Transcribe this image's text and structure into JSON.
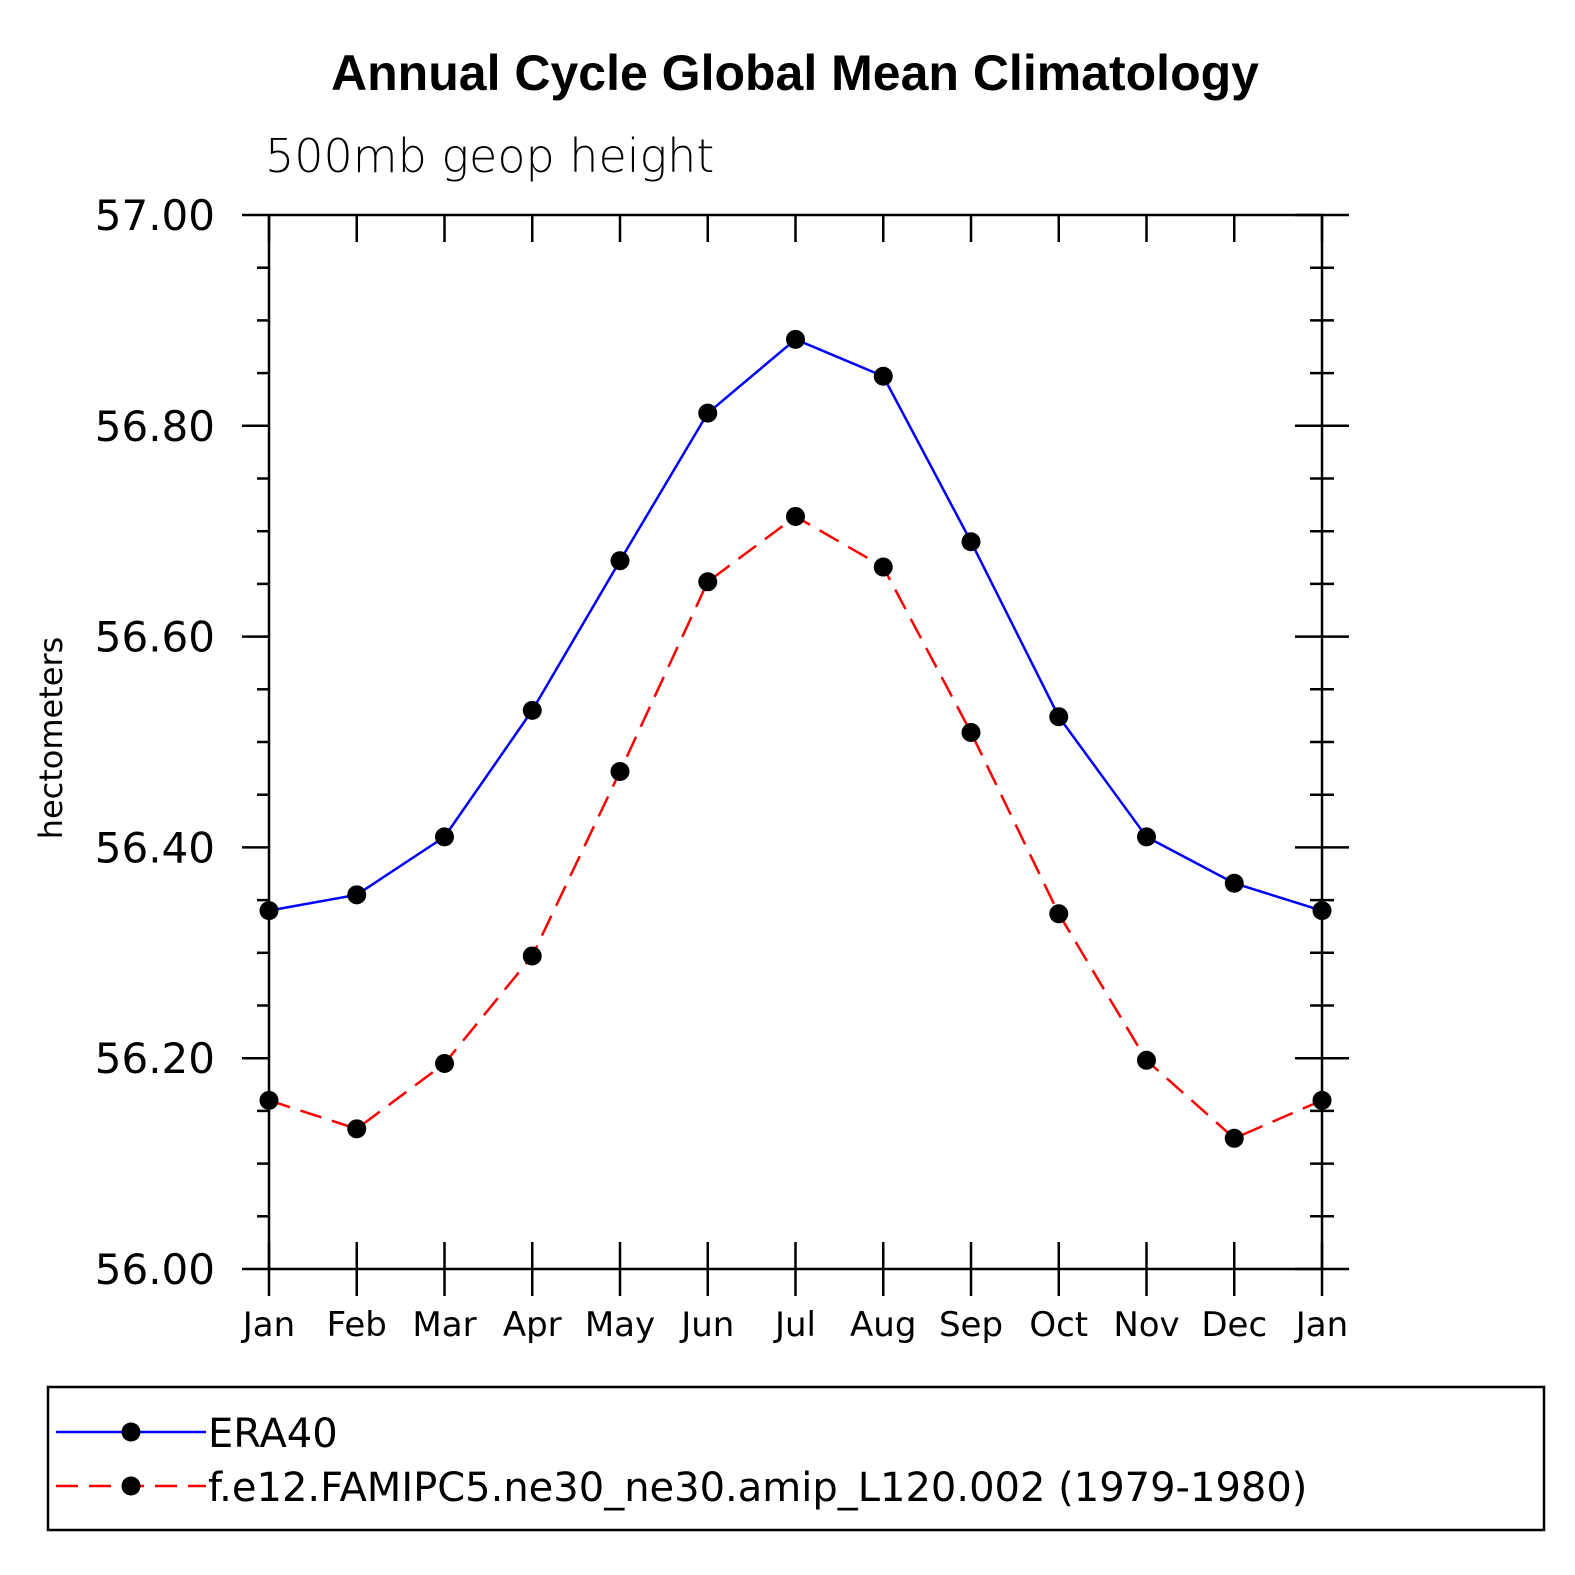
{
  "chart_data": {
    "type": "line",
    "title": "Annual Cycle Global Mean Climatology",
    "subtitle": "500mb geop height",
    "xlabel": "",
    "ylabel": "hectometers",
    "categories": [
      "Jan",
      "Feb",
      "Mar",
      "Apr",
      "May",
      "Jun",
      "Jul",
      "Aug",
      "Sep",
      "Oct",
      "Nov",
      "Dec",
      "Jan"
    ],
    "ylim": [
      56.0,
      57.0
    ],
    "yticks": [
      56.0,
      56.2,
      56.4,
      56.6,
      56.8,
      57.0
    ],
    "ytick_labels": [
      "56.00",
      "56.20",
      "56.40",
      "56.60",
      "56.80",
      "57.00"
    ],
    "y_minor_step": 0.05,
    "grid": false,
    "legend_position": "bottom",
    "series": [
      {
        "name": "ERA40",
        "color": "#0000ff",
        "style": "solid",
        "marker": "filled-circle",
        "values": [
          56.34,
          56.355,
          56.41,
          56.53,
          56.672,
          56.812,
          56.882,
          56.847,
          56.69,
          56.524,
          56.41,
          56.366,
          56.34
        ]
      },
      {
        "name": "f.e12.FAMIPC5.ne30_ne30.amip_L120.002 (1979-1980)",
        "color": "#ff0000",
        "style": "dashed",
        "marker": "filled-circle",
        "values": [
          56.16,
          56.133,
          56.195,
          56.297,
          56.472,
          56.652,
          56.714,
          56.666,
          56.509,
          56.337,
          56.198,
          56.124,
          56.16
        ]
      }
    ]
  }
}
